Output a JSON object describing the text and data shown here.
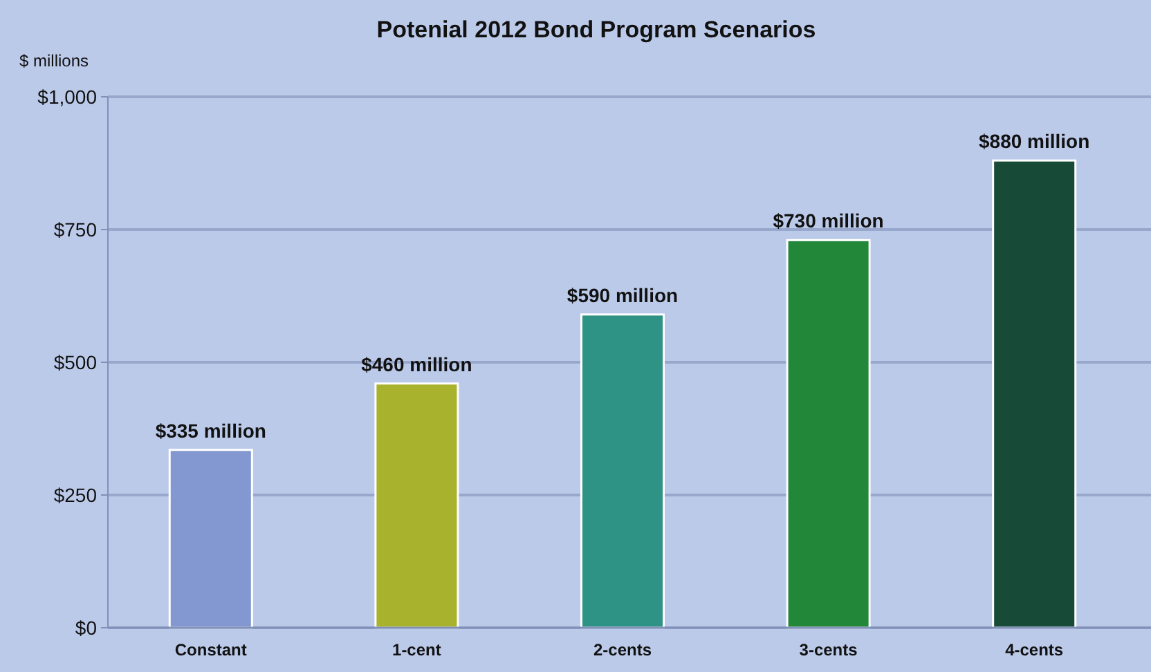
{
  "chart_data": {
    "type": "bar",
    "title": "Potenial 2012 Bond Program Scenarios",
    "ylabel": "$ millions",
    "categories": [
      "Constant",
      "1-cent",
      "2-cents",
      "3-cents",
      "4-cents"
    ],
    "values": [
      335,
      460,
      590,
      730,
      880
    ],
    "colors": [
      "#8398d0",
      "#a8b22c",
      "#2e9284",
      "#23873a",
      "#184a38"
    ],
    "value_labels": [
      "$335 million",
      "$460 million",
      "$590 million",
      "$730 million",
      "$880 million"
    ],
    "ylim": [
      0,
      1000
    ],
    "yticks": [
      {
        "value": 0,
        "label": "$0"
      },
      {
        "value": 250,
        "label": "$250"
      },
      {
        "value": 500,
        "label": "$500"
      },
      {
        "value": 750,
        "label": "$750"
      },
      {
        "value": 1000,
        "label": "$1,000"
      }
    ],
    "grid": "y"
  }
}
